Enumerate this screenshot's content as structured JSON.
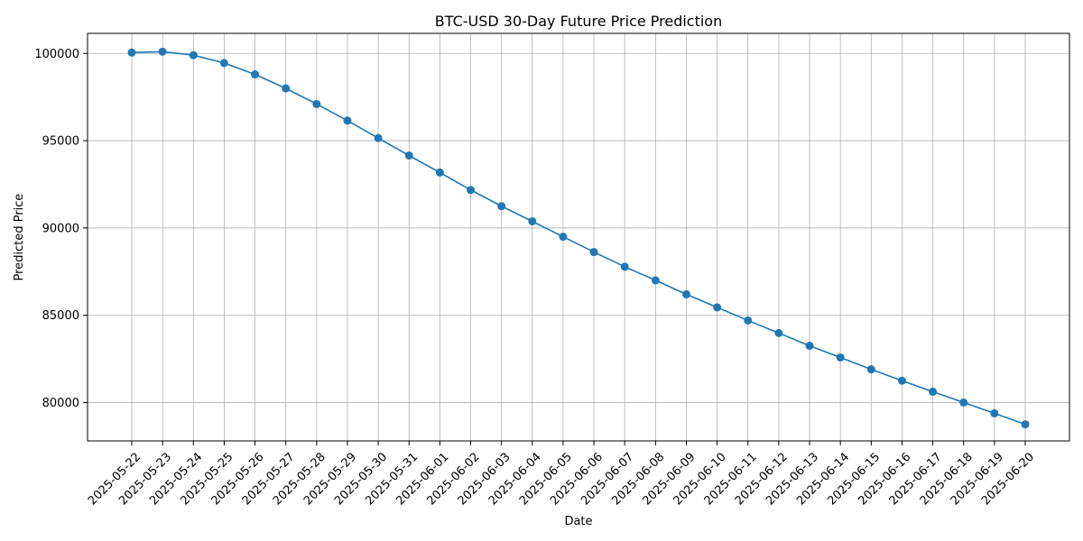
{
  "chart_data": {
    "type": "line",
    "title": "BTC-USD 30-Day Future Price Prediction",
    "xlabel": "Date",
    "ylabel": "Predicted Price",
    "x": [
      "2025-05-22",
      "2025-05-23",
      "2025-05-24",
      "2025-05-25",
      "2025-05-26",
      "2025-05-27",
      "2025-05-28",
      "2025-05-29",
      "2025-05-30",
      "2025-05-31",
      "2025-06-01",
      "2025-06-02",
      "2025-06-03",
      "2025-06-04",
      "2025-06-05",
      "2025-06-06",
      "2025-06-07",
      "2025-06-08",
      "2025-06-09",
      "2025-06-10",
      "2025-06-11",
      "2025-06-12",
      "2025-06-13",
      "2025-06-14",
      "2025-06-15",
      "2025-06-16",
      "2025-06-17",
      "2025-06-18",
      "2025-06-19",
      "2025-06-20"
    ],
    "series": [
      {
        "values": [
          100050,
          100100,
          99900,
          99450,
          98800,
          98000,
          97100,
          96150,
          95150,
          94150,
          93180,
          92180,
          91250,
          90380,
          89500,
          88620,
          87780,
          87000,
          86200,
          85450,
          84700,
          83980,
          83250,
          82580,
          81900,
          81250,
          80620,
          80000,
          79380,
          78750
        ],
        "color": "#1f77b4",
        "marker": "circle"
      }
    ],
    "ylim": [
      77800,
      101150
    ],
    "yticks": [
      80000,
      85000,
      90000,
      95000,
      100000
    ],
    "grid": true
  }
}
